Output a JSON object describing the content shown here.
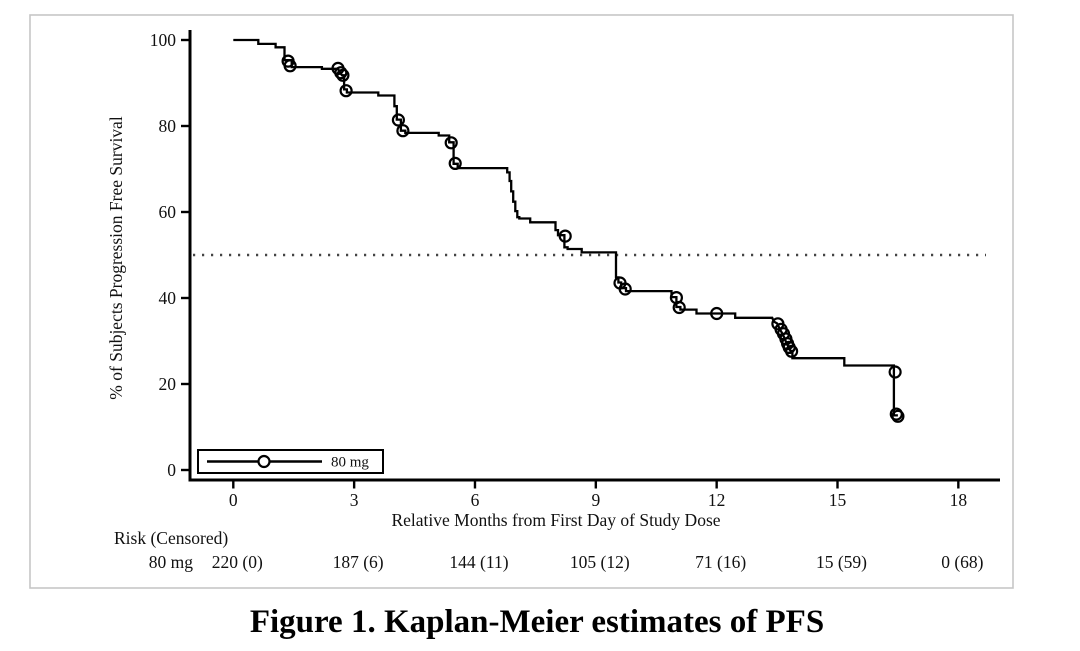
{
  "figure": {
    "caption": "Figure 1. Kaplan-Meier estimates of PFS"
  },
  "colors": {
    "curve": "#000000",
    "axis": "#000000",
    "text": "#111111",
    "frame_border": "#c6c6c6",
    "background": "#ffffff",
    "reference_line": "#444444"
  },
  "chart_data": {
    "type": "line",
    "subtype": "kaplan-meier-step",
    "title": "",
    "xlabel": "Relative Months from First Day of Study Dose",
    "ylabel": "% of Subjects Progression Free Survival",
    "xticks": [
      0,
      3,
      6,
      9,
      12,
      15,
      18
    ],
    "yticks": [
      0,
      20,
      40,
      60,
      80,
      100
    ],
    "xlim": [
      -1.1,
      19
    ],
    "ylim": [
      0,
      100
    ],
    "grid": false,
    "reference_line_y": 50,
    "legend": {
      "label": "80 mg",
      "position": "bottom-left-inside",
      "marker": "circle-on-line"
    },
    "series": [
      {
        "name": "80 mg",
        "step_points": [
          [
            0,
            100
          ],
          [
            0.62,
            100
          ],
          [
            0.62,
            99.1
          ],
          [
            1.05,
            99.1
          ],
          [
            1.05,
            98.3
          ],
          [
            1.27,
            98.3
          ],
          [
            1.27,
            95.3
          ],
          [
            1.45,
            95.3
          ],
          [
            1.45,
            93.7
          ],
          [
            2.2,
            93.7
          ],
          [
            2.2,
            93.3
          ],
          [
            2.6,
            93.3
          ],
          [
            2.65,
            92.4
          ],
          [
            2.7,
            91.8
          ],
          [
            2.75,
            91.8
          ],
          [
            2.75,
            88.5
          ],
          [
            2.82,
            88.5
          ],
          [
            2.82,
            87.8
          ],
          [
            3.6,
            87.8
          ],
          [
            3.6,
            87.1
          ],
          [
            4.0,
            87.1
          ],
          [
            4.0,
            84.6
          ],
          [
            4.06,
            84.6
          ],
          [
            4.06,
            81.5
          ],
          [
            4.16,
            81.5
          ],
          [
            4.16,
            78.9
          ],
          [
            4.27,
            78.9
          ],
          [
            4.27,
            78.4
          ],
          [
            5.1,
            78.4
          ],
          [
            5.1,
            77.8
          ],
          [
            5.36,
            77.8
          ],
          [
            5.36,
            76.2
          ],
          [
            5.47,
            76.2
          ],
          [
            5.47,
            71.2
          ],
          [
            5.57,
            71.2
          ],
          [
            5.57,
            70.2
          ],
          [
            6.8,
            70.2
          ],
          [
            6.8,
            69.2
          ],
          [
            6.86,
            69.2
          ],
          [
            6.86,
            67.2
          ],
          [
            6.9,
            67.2
          ],
          [
            6.9,
            64.8
          ],
          [
            6.95,
            64.8
          ],
          [
            6.95,
            62.4
          ],
          [
            7.0,
            62.4
          ],
          [
            7.0,
            60.2
          ],
          [
            7.05,
            60.2
          ],
          [
            7.05,
            58.8
          ],
          [
            7.1,
            58.8
          ],
          [
            7.1,
            58.5
          ],
          [
            7.37,
            58.5
          ],
          [
            7.37,
            57.6
          ],
          [
            8.0,
            57.6
          ],
          [
            8.0,
            55.8
          ],
          [
            8.06,
            55.8
          ],
          [
            8.06,
            54.6
          ],
          [
            8.22,
            54.6
          ],
          [
            8.22,
            51.8
          ],
          [
            8.3,
            51.8
          ],
          [
            8.3,
            51.4
          ],
          [
            8.65,
            51.4
          ],
          [
            8.65,
            50.6
          ],
          [
            9.5,
            50.6
          ],
          [
            9.5,
            44.8
          ],
          [
            9.56,
            44.8
          ],
          [
            9.56,
            43.6
          ],
          [
            9.63,
            43.6
          ],
          [
            9.63,
            42.3
          ],
          [
            9.75,
            42.3
          ],
          [
            9.75,
            41.6
          ],
          [
            10.88,
            41.6
          ],
          [
            10.88,
            40.2
          ],
          [
            11.0,
            40.2
          ],
          [
            11.0,
            37.9
          ],
          [
            11.1,
            37.9
          ],
          [
            11.1,
            37.3
          ],
          [
            11.5,
            37.3
          ],
          [
            11.5,
            36.4
          ],
          [
            12.46,
            36.4
          ],
          [
            12.46,
            35.4
          ],
          [
            13.38,
            35.4
          ],
          [
            13.42,
            34.5
          ],
          [
            13.5,
            34.1
          ],
          [
            13.56,
            32.9
          ],
          [
            13.62,
            31.9
          ],
          [
            13.68,
            30.8
          ],
          [
            13.73,
            29.6
          ],
          [
            13.78,
            28.7
          ],
          [
            13.83,
            27.7
          ],
          [
            13.88,
            27.7
          ],
          [
            13.88,
            26.0
          ],
          [
            15.17,
            26.0
          ],
          [
            15.17,
            24.3
          ],
          [
            16.4,
            24.3
          ],
          [
            16.4,
            12.7
          ],
          [
            16.5,
            12.7
          ]
        ],
        "censor_points": [
          [
            1.36,
            95.1
          ],
          [
            1.41,
            94.0
          ],
          [
            2.6,
            93.4
          ],
          [
            2.67,
            92.4
          ],
          [
            2.72,
            91.8
          ],
          [
            2.8,
            88.2
          ],
          [
            4.1,
            81.4
          ],
          [
            4.21,
            78.9
          ],
          [
            5.41,
            76.1
          ],
          [
            5.51,
            71.3
          ],
          [
            8.24,
            54.4
          ],
          [
            9.6,
            43.5
          ],
          [
            9.73,
            42.1
          ],
          [
            11.0,
            40.1
          ],
          [
            11.07,
            37.8
          ],
          [
            12.0,
            36.4
          ],
          [
            13.52,
            34.0
          ],
          [
            13.6,
            32.7
          ],
          [
            13.66,
            31.7
          ],
          [
            13.72,
            30.5
          ],
          [
            13.76,
            29.4
          ],
          [
            13.8,
            28.5
          ],
          [
            13.86,
            27.6
          ],
          [
            16.43,
            22.8
          ],
          [
            16.46,
            13.0
          ],
          [
            16.5,
            12.5
          ]
        ]
      }
    ],
    "risk_table": {
      "header": "Risk (Censored)",
      "row_label": "80 mg",
      "times": [
        0,
        3,
        6,
        9,
        12,
        15,
        18
      ],
      "values": [
        "220 (0)",
        "187 (6)",
        "144 (11)",
        "105 (12)",
        "71 (16)",
        "15 (59)",
        "0 (68)"
      ]
    }
  }
}
